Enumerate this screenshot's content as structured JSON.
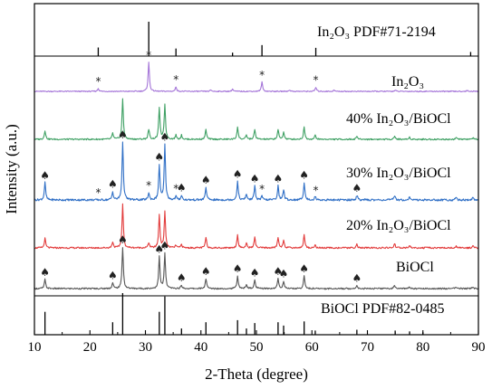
{
  "chart_data": {
    "type": "line",
    "xlabel": "2-Theta (degree)",
    "ylabel": "Intensity (a.u.)",
    "xlim": [
      10,
      90
    ],
    "xticks": [
      10,
      20,
      30,
      40,
      50,
      60,
      70,
      80,
      90
    ],
    "y_tick_labels": "none",
    "grid": false,
    "series": [
      {
        "name": "In₂O₃ PDF#71-2194",
        "kind": "reference",
        "color": "#000000",
        "peaks": [
          [
            21.5,
            0.25
          ],
          [
            30.6,
            1.0
          ],
          [
            35.5,
            0.22
          ],
          [
            45.7,
            0.1
          ],
          [
            51.0,
            0.32
          ],
          [
            60.7,
            0.24
          ],
          [
            88.6,
            0.12
          ]
        ]
      },
      {
        "name": "In₂O₃",
        "kind": "pattern",
        "color": "#a474d8",
        "peaks": [
          [
            21.5,
            0.1
          ],
          [
            30.6,
            1.0
          ],
          [
            35.5,
            0.16
          ],
          [
            41.8,
            0.05
          ],
          [
            45.7,
            0.08
          ],
          [
            51.0,
            0.32
          ],
          [
            56.0,
            0.05
          ],
          [
            60.7,
            0.14
          ],
          [
            64.0,
            0.04
          ],
          [
            75.0,
            0.04
          ],
          [
            88.0,
            0.03
          ]
        ],
        "markers": [
          {
            "x": 21.5,
            "symbol": "*"
          },
          {
            "x": 30.6,
            "symbol": "*"
          },
          {
            "x": 35.5,
            "symbol": "*"
          },
          {
            "x": 51.0,
            "symbol": "*"
          },
          {
            "x": 60.7,
            "symbol": "*"
          }
        ]
      },
      {
        "name": "40% In₂O₃/BiOCl",
        "kind": "pattern",
        "color": "#3ea063",
        "peaks": [
          [
            11.9,
            0.22
          ],
          [
            24.1,
            0.15
          ],
          [
            25.9,
            1.0
          ],
          [
            30.6,
            0.25
          ],
          [
            32.5,
            0.78
          ],
          [
            33.5,
            0.86
          ],
          [
            35.5,
            0.1
          ],
          [
            36.5,
            0.1
          ],
          [
            40.9,
            0.24
          ],
          [
            46.6,
            0.3
          ],
          [
            48.2,
            0.1
          ],
          [
            49.7,
            0.24
          ],
          [
            53.9,
            0.24
          ],
          [
            54.9,
            0.18
          ],
          [
            58.6,
            0.3
          ],
          [
            60.6,
            0.1
          ],
          [
            68.1,
            0.08
          ],
          [
            74.9,
            0.08
          ],
          [
            77.6,
            0.05
          ],
          [
            86.0,
            0.04
          ],
          [
            89.0,
            0.04
          ]
        ]
      },
      {
        "name": "30% In₂O₃/BiOCl",
        "kind": "pattern",
        "color": "#2f6fc6",
        "peaks": [
          [
            11.9,
            0.3
          ],
          [
            24.1,
            0.14
          ],
          [
            25.9,
            1.0
          ],
          [
            30.6,
            0.12
          ],
          [
            32.5,
            0.6
          ],
          [
            33.5,
            0.95
          ],
          [
            35.5,
            0.06
          ],
          [
            36.5,
            0.08
          ],
          [
            40.9,
            0.22
          ],
          [
            46.6,
            0.32
          ],
          [
            48.2,
            0.1
          ],
          [
            49.7,
            0.24
          ],
          [
            51.0,
            0.06
          ],
          [
            53.9,
            0.24
          ],
          [
            54.9,
            0.18
          ],
          [
            58.6,
            0.3
          ],
          [
            60.6,
            0.06
          ],
          [
            68.1,
            0.08
          ],
          [
            74.9,
            0.08
          ],
          [
            77.6,
            0.05
          ],
          [
            86.0,
            0.04
          ],
          [
            89.0,
            0.04
          ]
        ],
        "markers": [
          {
            "x": 11.9,
            "symbol": "♠"
          },
          {
            "x": 21.5,
            "symbol": "*"
          },
          {
            "x": 24.1,
            "symbol": "♠"
          },
          {
            "x": 25.9,
            "symbol": "♠"
          },
          {
            "x": 30.6,
            "symbol": "*"
          },
          {
            "x": 32.5,
            "symbol": "♠"
          },
          {
            "x": 33.5,
            "symbol": "♠"
          },
          {
            "x": 35.5,
            "symbol": "*"
          },
          {
            "x": 36.5,
            "symbol": "♠"
          },
          {
            "x": 40.9,
            "symbol": "♠"
          },
          {
            "x": 46.6,
            "symbol": "♠"
          },
          {
            "x": 49.7,
            "symbol": "♠"
          },
          {
            "x": 51.0,
            "symbol": "*"
          },
          {
            "x": 53.9,
            "symbol": "♠"
          },
          {
            "x": 58.6,
            "symbol": "♠"
          },
          {
            "x": 60.7,
            "symbol": "*"
          },
          {
            "x": 68.1,
            "symbol": "♠"
          }
        ]
      },
      {
        "name": "20% In₂O₃/BiOCl",
        "kind": "pattern",
        "color": "#e23b3b",
        "peaks": [
          [
            11.9,
            0.22
          ],
          [
            24.1,
            0.14
          ],
          [
            25.9,
            1.0
          ],
          [
            30.6,
            0.12
          ],
          [
            32.5,
            0.76
          ],
          [
            33.5,
            0.84
          ],
          [
            35.5,
            0.06
          ],
          [
            36.5,
            0.08
          ],
          [
            40.9,
            0.24
          ],
          [
            46.6,
            0.3
          ],
          [
            48.2,
            0.1
          ],
          [
            49.7,
            0.24
          ],
          [
            53.9,
            0.24
          ],
          [
            54.9,
            0.18
          ],
          [
            58.6,
            0.3
          ],
          [
            60.6,
            0.06
          ],
          [
            68.1,
            0.08
          ],
          [
            74.9,
            0.1
          ],
          [
            77.6,
            0.05
          ],
          [
            86.0,
            0.04
          ],
          [
            89.0,
            0.04
          ]
        ]
      },
      {
        "name": "BiOCl",
        "kind": "pattern",
        "color": "#555555",
        "peaks": [
          [
            11.9,
            0.22
          ],
          [
            24.1,
            0.14
          ],
          [
            25.9,
            1.0
          ],
          [
            32.5,
            0.76
          ],
          [
            33.5,
            0.84
          ],
          [
            36.5,
            0.08
          ],
          [
            40.9,
            0.24
          ],
          [
            46.6,
            0.3
          ],
          [
            48.2,
            0.1
          ],
          [
            49.7,
            0.2
          ],
          [
            53.9,
            0.24
          ],
          [
            54.9,
            0.18
          ],
          [
            58.6,
            0.3
          ],
          [
            68.1,
            0.08
          ],
          [
            74.9,
            0.08
          ],
          [
            77.6,
            0.05
          ],
          [
            86.0,
            0.04
          ],
          [
            89.0,
            0.04
          ]
        ],
        "markers": [
          {
            "x": 11.9,
            "symbol": "♠"
          },
          {
            "x": 24.1,
            "symbol": "♠"
          },
          {
            "x": 25.9,
            "symbol": "♠"
          },
          {
            "x": 32.5,
            "symbol": "♠"
          },
          {
            "x": 33.5,
            "symbol": "♠"
          },
          {
            "x": 36.5,
            "symbol": "♠"
          },
          {
            "x": 40.9,
            "symbol": "♠"
          },
          {
            "x": 46.6,
            "symbol": "♠"
          },
          {
            "x": 49.7,
            "symbol": "♠"
          },
          {
            "x": 53.9,
            "symbol": "♠"
          },
          {
            "x": 54.9,
            "symbol": "♠"
          },
          {
            "x": 58.6,
            "symbol": "♠"
          },
          {
            "x": 68.1,
            "symbol": "♠"
          }
        ]
      },
      {
        "name": "BiOCl PDF#82-0485",
        "kind": "reference",
        "color": "#000000",
        "peaks": [
          [
            11.9,
            0.55
          ],
          [
            24.1,
            0.3
          ],
          [
            25.9,
            1.0
          ],
          [
            32.5,
            0.55
          ],
          [
            33.5,
            0.92
          ],
          [
            36.5,
            0.15
          ],
          [
            40.9,
            0.3
          ],
          [
            46.6,
            0.35
          ],
          [
            48.2,
            0.15
          ],
          [
            49.7,
            0.28
          ],
          [
            53.9,
            0.3
          ],
          [
            54.9,
            0.22
          ],
          [
            58.6,
            0.32
          ],
          [
            60.6,
            0.1
          ],
          [
            68.1,
            0.12
          ],
          [
            75.0,
            0.1
          ],
          [
            77.6,
            0.08
          ],
          [
            80.0,
            0.06
          ]
        ]
      }
    ]
  }
}
